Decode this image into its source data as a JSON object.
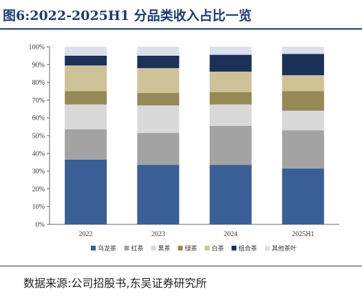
{
  "header": {
    "title": "图6:2022-2025H1 分品类收入占比一览"
  },
  "footer": {
    "source": "数据来源:公司招股书,东吴证券研究所"
  },
  "chart_data": {
    "type": "bar",
    "stacked": true,
    "categories": [
      "2022",
      "2023",
      "2024",
      "2025H1"
    ],
    "ylim": [
      0,
      100
    ],
    "y_ticks": [
      "0%",
      "10%",
      "20%",
      "30%",
      "40%",
      "50%",
      "60%",
      "70%",
      "80%",
      "90%",
      "100%"
    ],
    "legend_position": "bottom",
    "grid": false,
    "series": [
      {
        "name": "乌龙茶",
        "color": "#3a5f96",
        "values": [
          36.5,
          33.5,
          33.5,
          31.5
        ]
      },
      {
        "name": "红茶",
        "color": "#a3a3a3",
        "values": [
          17.0,
          18.0,
          22.0,
          21.5
        ]
      },
      {
        "name": "黑茶",
        "color": "#d9d9d9",
        "values": [
          14.0,
          15.5,
          12.0,
          11.0
        ]
      },
      {
        "name": "绿茶",
        "color": "#958a55",
        "values": [
          7.5,
          7.0,
          7.0,
          11.0
        ]
      },
      {
        "name": "白茶",
        "color": "#cec298",
        "values": [
          14.5,
          14.0,
          11.5,
          9.0
        ]
      },
      {
        "name": "组合茶",
        "color": "#1b3158",
        "values": [
          5.5,
          7.0,
          9.5,
          12.0
        ]
      },
      {
        "name": "其他茶叶",
        "color": "#d9e1ee",
        "values": [
          5.0,
          5.0,
          4.5,
          4.0
        ]
      }
    ]
  }
}
